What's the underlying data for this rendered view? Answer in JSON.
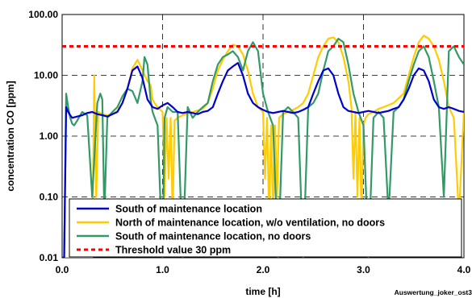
{
  "chart_data": {
    "type": "line",
    "title": "",
    "xlabel": "time [h]",
    "ylabel": "concentration CO [ppm]",
    "xlim": [
      0,
      4
    ],
    "ylim": [
      0.01,
      100
    ],
    "y_scale": "log",
    "grid": true,
    "legend_position": "bottom-right",
    "x_ticks": [
      "0.0",
      "1.0",
      "2.0",
      "3.0",
      "4.0"
    ],
    "y_ticks": [
      "0.01",
      "0.10",
      "1.00",
      "10.00",
      "100.00"
    ],
    "annotation": "Auswertung_joker_ost3",
    "series": [
      {
        "name": "South of maintenance location",
        "color": "#0000cc",
        "x": [
          0,
          0.02,
          0.04,
          0.06,
          0.08,
          0.1,
          0.15,
          0.2,
          0.25,
          0.3,
          0.35,
          0.4,
          0.45,
          0.5,
          0.55,
          0.6,
          0.65,
          0.7,
          0.75,
          0.8,
          0.85,
          0.9,
          0.95,
          1.0,
          1.05,
          1.1,
          1.15,
          1.2,
          1.25,
          1.3,
          1.35,
          1.4,
          1.45,
          1.5,
          1.55,
          1.6,
          1.65,
          1.7,
          1.75,
          1.8,
          1.85,
          1.9,
          1.95,
          2.0,
          2.05,
          2.1,
          2.15,
          2.2,
          2.25,
          2.3,
          2.35,
          2.4,
          2.45,
          2.5,
          2.55,
          2.6,
          2.65,
          2.7,
          2.75,
          2.8,
          2.85,
          2.9,
          2.95,
          3.0,
          3.05,
          3.1,
          3.15,
          3.2,
          3.25,
          3.3,
          3.35,
          3.4,
          3.45,
          3.5,
          3.55,
          3.6,
          3.65,
          3.7,
          3.75,
          3.8,
          3.85,
          3.9,
          3.95,
          4.0
        ],
        "y": [
          0.01,
          0.01,
          3.0,
          2.5,
          2.2,
          2.0,
          2.1,
          2.2,
          2.4,
          2.5,
          2.3,
          2.2,
          2.1,
          2.3,
          2.5,
          3.5,
          6.0,
          12.0,
          14.0,
          9.0,
          4.0,
          3.0,
          2.8,
          3.2,
          3.5,
          3.0,
          2.5,
          2.4,
          2.5,
          2.4,
          2.3,
          2.5,
          2.6,
          3.0,
          5.0,
          8.0,
          12.0,
          14.0,
          16.0,
          10.0,
          5.0,
          3.5,
          3.0,
          2.7,
          2.5,
          2.4,
          2.5,
          2.6,
          2.5,
          2.4,
          2.5,
          2.7,
          3.0,
          5.0,
          8.0,
          12.0,
          13.0,
          10.0,
          5.0,
          3.0,
          2.6,
          2.5,
          2.4,
          2.5,
          2.6,
          2.5,
          2.4,
          2.5,
          2.6,
          2.8,
          3.0,
          4.0,
          6.0,
          10.0,
          13.0,
          12.0,
          8.0,
          4.0,
          3.0,
          2.8,
          3.0,
          2.8,
          2.6,
          2.5
        ]
      },
      {
        "name": "North of maintenance location, w/o ventilation, no doors",
        "color": "#ffcc00",
        "x": [
          0,
          0.02,
          0.04,
          0.06,
          0.08,
          0.1,
          0.15,
          0.2,
          0.25,
          0.28,
          0.3,
          0.32,
          0.34,
          0.36,
          0.4,
          0.45,
          0.5,
          0.55,
          0.6,
          0.65,
          0.7,
          0.75,
          0.8,
          0.85,
          0.88,
          0.9,
          0.92,
          0.95,
          1.0,
          1.02,
          1.04,
          1.06,
          1.08,
          1.1,
          1.12,
          1.15,
          1.2,
          1.3,
          1.4,
          1.45,
          1.5,
          1.55,
          1.6,
          1.65,
          1.7,
          1.75,
          1.8,
          1.85,
          1.9,
          1.95,
          2.0,
          2.02,
          2.04,
          2.06,
          2.08,
          2.1,
          2.12,
          2.14,
          2.16,
          2.2,
          2.25,
          2.3,
          2.35,
          2.4,
          2.45,
          2.5,
          2.55,
          2.6,
          2.65,
          2.7,
          2.75,
          2.8,
          2.85,
          2.88,
          2.9,
          2.92,
          2.94,
          2.96,
          2.98,
          3.0,
          3.02,
          3.05,
          3.1,
          3.15,
          3.2,
          3.3,
          3.4,
          3.45,
          3.5,
          3.55,
          3.6,
          3.65,
          3.7,
          3.75,
          3.8,
          3.85,
          3.9,
          3.95,
          4.0
        ],
        "y": [
          0.01,
          0.01,
          0.01,
          0.01,
          0.01,
          0.01,
          0.01,
          0.01,
          0.01,
          0.01,
          0.01,
          10.0,
          0.1,
          2.5,
          2.3,
          2.2,
          2.3,
          2.6,
          3.5,
          6.0,
          13.0,
          18.0,
          12.0,
          8.0,
          7.0,
          4.0,
          3.5,
          3.0,
          2.5,
          0.1,
          2.0,
          0.2,
          2.0,
          0.05,
          1.8,
          2.0,
          2.2,
          2.5,
          2.8,
          3.5,
          6.0,
          12.0,
          18.0,
          25.0,
          32.0,
          30.0,
          22.0,
          12.0,
          5.0,
          3.0,
          2.5,
          0.2,
          2.0,
          0.05,
          1.5,
          0.05,
          1.5,
          0.1,
          2.0,
          2.3,
          2.5,
          2.7,
          3.0,
          3.5,
          5.0,
          10.0,
          20.0,
          30.0,
          40.0,
          42.0,
          35.0,
          20.0,
          8.0,
          3.0,
          0.2,
          2.5,
          0.1,
          2.0,
          0.05,
          1.5,
          2.0,
          2.3,
          2.5,
          2.8,
          3.0,
          3.5,
          5.0,
          10.0,
          20.0,
          35.0,
          45.0,
          40.0,
          30.0,
          18.0,
          8.0,
          3.0,
          2.0,
          0.05,
          2.5
        ]
      },
      {
        "name": "South of maintenance location, no doors",
        "color": "#339966",
        "x": [
          0,
          0.02,
          0.04,
          0.06,
          0.08,
          0.1,
          0.12,
          0.15,
          0.2,
          0.25,
          0.3,
          0.35,
          0.38,
          0.4,
          0.42,
          0.45,
          0.5,
          0.55,
          0.6,
          0.65,
          0.7,
          0.75,
          0.8,
          0.82,
          0.85,
          0.88,
          0.9,
          0.95,
          1.0,
          1.02,
          1.05,
          1.1,
          1.15,
          1.2,
          1.25,
          1.3,
          1.35,
          1.4,
          1.45,
          1.5,
          1.55,
          1.6,
          1.65,
          1.7,
          1.75,
          1.8,
          1.85,
          1.9,
          1.95,
          2.0,
          2.05,
          2.1,
          2.15,
          2.2,
          2.25,
          2.3,
          2.35,
          2.4,
          2.45,
          2.5,
          2.55,
          2.6,
          2.65,
          2.7,
          2.75,
          2.8,
          2.85,
          2.9,
          2.95,
          3.0,
          3.05,
          3.1,
          3.15,
          3.2,
          3.25,
          3.3,
          3.35,
          3.4,
          3.45,
          3.5,
          3.55,
          3.6,
          3.65,
          3.7,
          3.75,
          3.8,
          3.85,
          3.9,
          3.95,
          4.0
        ],
        "y": [
          0.01,
          0.01,
          5.0,
          3.0,
          2.0,
          1.6,
          1.5,
          1.8,
          2.5,
          2.2,
          0.1,
          3.5,
          5.0,
          4.0,
          0.05,
          2.0,
          2.5,
          3.0,
          4.5,
          6.0,
          5.5,
          3.5,
          8.0,
          20.0,
          15.0,
          4.0,
          2.5,
          1.5,
          0.01,
          2.0,
          3.0,
          2.5,
          2.5,
          0.01,
          3.0,
          2.0,
          2.5,
          3.0,
          3.5,
          8.0,
          15.0,
          20.0,
          22.0,
          25.0,
          20.0,
          12.0,
          25.0,
          35.0,
          25.0,
          5.0,
          2.5,
          1.5,
          0.01,
          2.5,
          3.0,
          2.5,
          2.0,
          0.01,
          3.0,
          3.5,
          5.0,
          12.0,
          25.0,
          30.0,
          40.0,
          35.0,
          15.0,
          5.0,
          2.5,
          1.5,
          0.01,
          2.0,
          2.5,
          2.0,
          0.05,
          2.5,
          3.0,
          4.0,
          8.0,
          15.0,
          25.0,
          30.0,
          20.0,
          8.0,
          3.0,
          0.1,
          25.0,
          30.0,
          20.0,
          15.0
        ]
      },
      {
        "name": "Threshold value 30 ppm",
        "color": "#ff0000",
        "x": [
          0,
          4
        ],
        "y": [
          30,
          30
        ]
      }
    ]
  }
}
